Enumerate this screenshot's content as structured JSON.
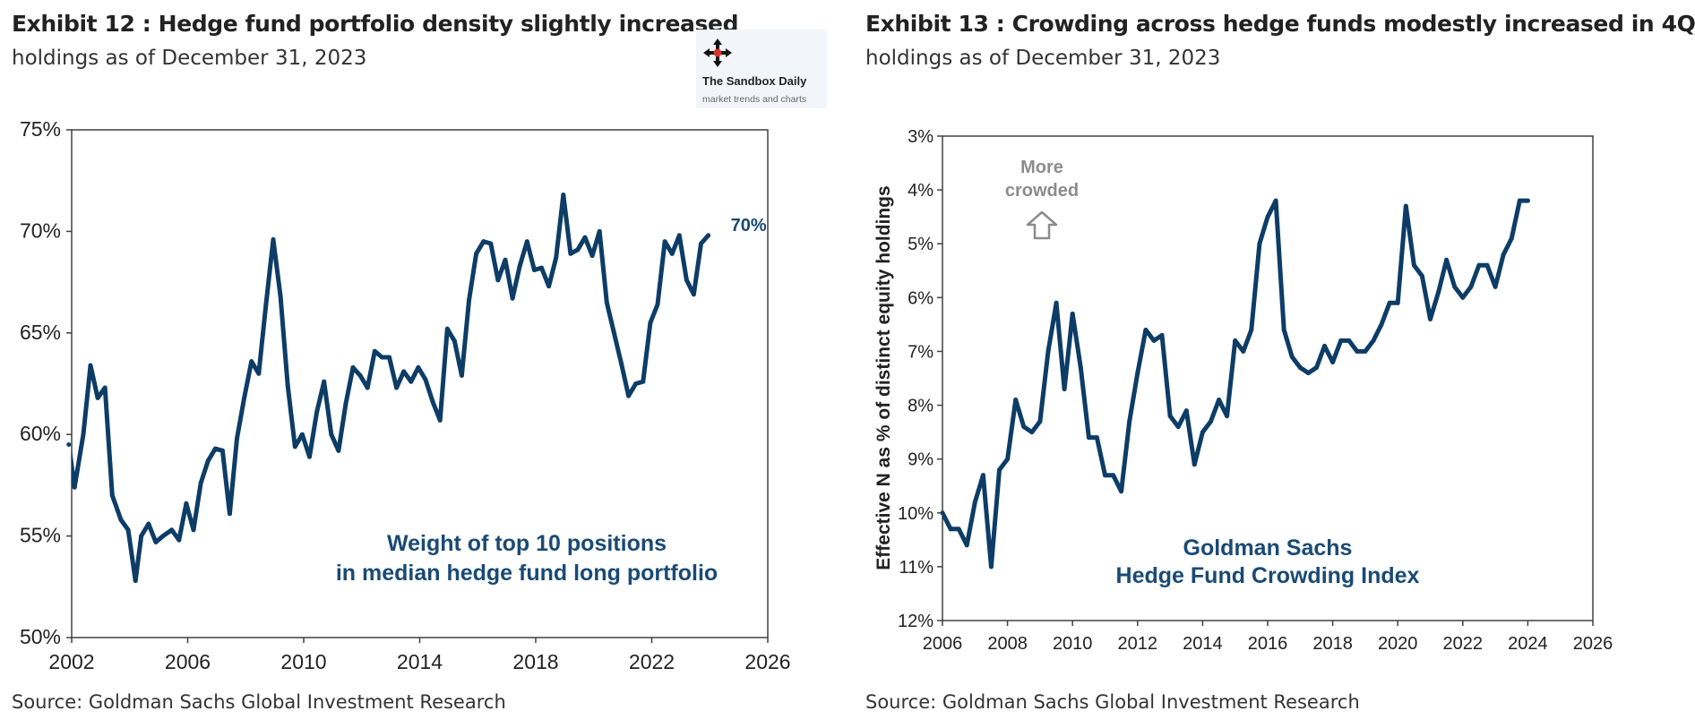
{
  "exhibit12": {
    "title": "Exhibit 12 : Hedge fund portfolio density slightly increased",
    "subtitle": "holdings as of December 31, 2023",
    "source": "Source: Goldman Sachs Global Investment Research"
  },
  "exhibit13": {
    "title": "Exhibit 13 : Crowding across hedge funds modestly increased in 4Q",
    "subtitle": "holdings as of December 31, 2023",
    "source": "Source: Goldman Sachs Global Investment Research"
  },
  "watermark": {
    "name": "The Sandbox Daily",
    "tagline": "market trends and charts",
    "icon": "compass-move-icon"
  },
  "colors": {
    "series": "#0d3d66",
    "annotation": "#1a4a75",
    "muted_annotation": "#8c8c8c",
    "axis": "#404040",
    "text": "#222222"
  },
  "chart_data": [
    {
      "type": "line",
      "title": "",
      "annotation_lines": [
        "Weight of top 10 positions",
        "in median hedge fund long portfolio"
      ],
      "end_label": "70%",
      "xlim": [
        2002,
        2026
      ],
      "ylim": [
        50,
        75
      ],
      "x_ticks": [
        2002,
        2006,
        2010,
        2014,
        2018,
        2022,
        2026
      ],
      "x_tick_labels": [
        "2002",
        "2006",
        "2010",
        "2014",
        "2018",
        "2022",
        "2026"
      ],
      "y_ticks": [
        50,
        55,
        60,
        65,
        70,
        75
      ],
      "y_tick_labels": [
        "50%",
        "55%",
        "60%",
        "65%",
        "70%",
        "75%"
      ],
      "grid": false,
      "x": [
        2001.9,
        2002.1,
        2002.4,
        2002.65,
        2002.9,
        2003.15,
        2003.4,
        2003.7,
        2003.95,
        2004.2,
        2004.4,
        2004.65,
        2004.9,
        2005.15,
        2005.45,
        2005.7,
        2005.95,
        2006.2,
        2006.45,
        2006.7,
        2006.95,
        2007.2,
        2007.45,
        2007.7,
        2007.95,
        2008.2,
        2008.45,
        2008.7,
        2008.95,
        2009.2,
        2009.45,
        2009.7,
        2009.95,
        2010.2,
        2010.45,
        2010.7,
        2010.95,
        2011.2,
        2011.45,
        2011.7,
        2011.95,
        2012.2,
        2012.45,
        2012.7,
        2012.95,
        2013.2,
        2013.45,
        2013.7,
        2013.95,
        2014.2,
        2014.45,
        2014.7,
        2014.95,
        2015.2,
        2015.45,
        2015.7,
        2015.95,
        2016.2,
        2016.45,
        2016.7,
        2016.95,
        2017.2,
        2017.45,
        2017.7,
        2017.95,
        2018.2,
        2018.45,
        2018.7,
        2018.95,
        2019.2,
        2019.45,
        2019.7,
        2019.95,
        2020.2,
        2020.45,
        2020.7,
        2020.95,
        2021.2,
        2021.45,
        2021.7,
        2021.95,
        2022.2,
        2022.45,
        2022.7,
        2022.95,
        2023.2,
        2023.45,
        2023.7,
        2023.95
      ],
      "y": [
        59.5,
        57.4,
        60.0,
        63.4,
        61.8,
        62.3,
        57.0,
        55.8,
        55.3,
        52.8,
        55.0,
        55.6,
        54.7,
        55.0,
        55.3,
        54.8,
        56.6,
        55.3,
        57.6,
        58.7,
        59.3,
        59.2,
        56.1,
        59.8,
        61.8,
        63.6,
        63.0,
        66.4,
        69.6,
        66.8,
        62.4,
        59.4,
        60.0,
        58.9,
        61.1,
        62.6,
        60.0,
        59.2,
        61.5,
        63.3,
        62.9,
        62.3,
        64.1,
        63.8,
        63.8,
        62.3,
        63.1,
        62.6,
        63.3,
        62.7,
        61.6,
        60.7,
        65.2,
        64.6,
        62.9,
        66.6,
        68.9,
        69.5,
        69.4,
        67.6,
        68.6,
        66.7,
        68.3,
        69.5,
        68.1,
        68.2,
        67.3,
        68.7,
        71.8,
        68.9,
        69.1,
        69.7,
        68.8,
        70.0,
        66.5,
        65.0,
        63.5,
        61.9,
        62.5,
        62.6,
        65.5,
        66.4,
        69.5,
        68.9,
        69.8,
        67.6,
        66.9,
        69.4,
        69.8
      ]
    },
    {
      "type": "line",
      "title": "",
      "annotation_lines": [
        "Goldman  Sachs",
        "Hedge Fund Crowding Index"
      ],
      "ylabel": "Effective  N as % of distinct equity holdings",
      "direction_label_lines": [
        "More",
        "crowded"
      ],
      "direction_icon": "up-arrow-icon",
      "y_inverted": true,
      "xlim": [
        2006,
        2026
      ],
      "ylim": [
        3,
        12
      ],
      "x_ticks": [
        2006,
        2008,
        2010,
        2012,
        2014,
        2016,
        2018,
        2020,
        2022,
        2024,
        2026
      ],
      "x_tick_labels": [
        "2006",
        "2008",
        "2010",
        "2012",
        "2014",
        "2016",
        "2018",
        "2020",
        "2022",
        "2024",
        "2026"
      ],
      "y_ticks": [
        3,
        4,
        5,
        6,
        7,
        8,
        9,
        10,
        11,
        12
      ],
      "y_tick_labels": [
        "3%",
        "4%",
        "5%",
        "6%",
        "7%",
        "8%",
        "9%",
        "10%",
        "11%",
        "12%"
      ],
      "grid": false,
      "x": [
        2006.0,
        2006.25,
        2006.5,
        2006.75,
        2007.0,
        2007.25,
        2007.5,
        2007.75,
        2008.0,
        2008.25,
        2008.5,
        2008.75,
        2009.0,
        2009.25,
        2009.5,
        2009.75,
        2010.0,
        2010.25,
        2010.5,
        2010.75,
        2011.0,
        2011.25,
        2011.5,
        2011.75,
        2012.0,
        2012.25,
        2012.5,
        2012.75,
        2013.0,
        2013.25,
        2013.5,
        2013.75,
        2014.0,
        2014.25,
        2014.5,
        2014.75,
        2015.0,
        2015.25,
        2015.5,
        2015.75,
        2016.0,
        2016.25,
        2016.5,
        2016.75,
        2017.0,
        2017.25,
        2017.5,
        2017.75,
        2018.0,
        2018.25,
        2018.5,
        2018.75,
        2019.0,
        2019.25,
        2019.5,
        2019.75,
        2020.0,
        2020.25,
        2020.5,
        2020.75,
        2021.0,
        2021.25,
        2021.5,
        2021.75,
        2022.0,
        2022.25,
        2022.5,
        2022.75,
        2023.0,
        2023.25,
        2023.5,
        2023.75,
        2024.0
      ],
      "y": [
        10.0,
        10.3,
        10.3,
        10.6,
        9.8,
        9.3,
        11.0,
        9.2,
        9.0,
        7.9,
        8.4,
        8.5,
        8.3,
        7.0,
        6.1,
        7.7,
        6.3,
        7.3,
        8.6,
        8.6,
        9.3,
        9.3,
        9.6,
        8.3,
        7.4,
        6.6,
        6.8,
        6.7,
        8.2,
        8.4,
        8.1,
        9.1,
        8.5,
        8.3,
        7.9,
        8.2,
        6.8,
        7.0,
        6.6,
        5.0,
        4.5,
        4.2,
        6.6,
        7.1,
        7.3,
        7.4,
        7.3,
        6.9,
        7.2,
        6.8,
        6.8,
        7.0,
        7.0,
        6.8,
        6.5,
        6.1,
        6.1,
        4.3,
        5.4,
        5.6,
        6.4,
        5.9,
        5.3,
        5.8,
        6.0,
        5.8,
        5.4,
        5.4,
        5.8,
        5.2,
        4.9,
        4.2,
        4.2
      ]
    }
  ]
}
